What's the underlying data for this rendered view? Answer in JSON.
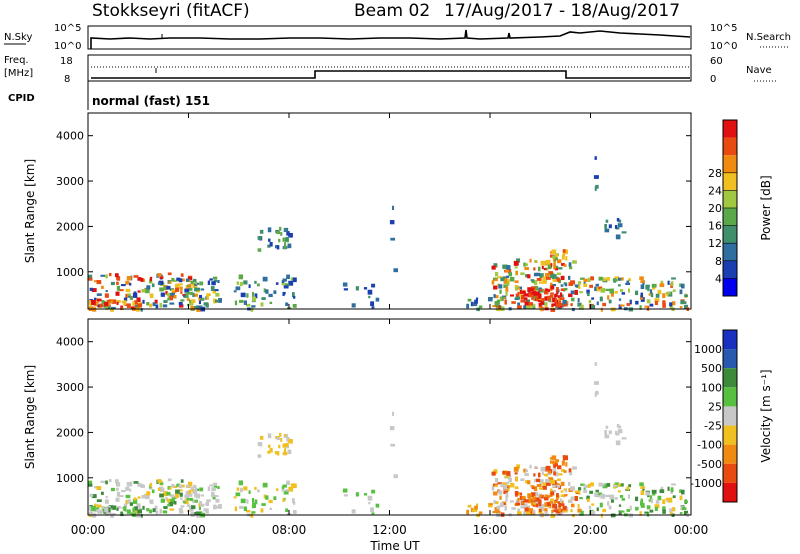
{
  "header": {
    "station": "Stokkseyri (fitACF)",
    "beam_label": "Beam 02",
    "date_range": "17/Aug/2017 - 18/Aug/2017"
  },
  "top_panels": {
    "nsky_label": "N.Sky",
    "nsearch_label": "N.Search",
    "nsky_ticks": [
      "10^5",
      "10^0"
    ],
    "nsearch_ticks": [
      "10^5",
      "10^0"
    ],
    "freq_label_top": "Freq.",
    "freq_label_bottom": "[MHz]",
    "freq_ticks": [
      "18",
      "8"
    ],
    "nave_label": "Nave",
    "nave_ticks": [
      "60",
      "0"
    ],
    "cpid_label": "CPID",
    "cpid_text": "normal (fast) 151"
  },
  "chart_data": [
    {
      "type": "heatmap",
      "title": "",
      "xlabel": "",
      "ylabel": "Slant Range [km]",
      "xlim": [
        "00:00",
        "24:00"
      ],
      "ylim": [
        180,
        4500
      ],
      "yticks": [
        "1000",
        "2000",
        "3000",
        "4000"
      ],
      "colorbar": {
        "label": "Power [dB]",
        "ticks": [
          "4",
          "8",
          "12",
          "16",
          "20",
          "24",
          "28"
        ],
        "range": [
          0,
          30
        ],
        "colors": [
          "#0000ee",
          "#1a3fb0",
          "#2f6fa0",
          "#3f8f6c",
          "#5aa848",
          "#a0c840",
          "#f0c020",
          "#f08a10",
          "#e84a10",
          "#e01010"
        ]
      }
    },
    {
      "type": "heatmap",
      "title": "",
      "xlabel": "Time UT",
      "ylabel": "Slant Range [km]",
      "xlim": [
        "00:00",
        "24:00"
      ],
      "ylim": [
        180,
        4500
      ],
      "xticks": [
        "00:00",
        "04:00",
        "08:00",
        "12:00",
        "16:00",
        "20:00",
        "00:00"
      ],
      "yticks": [
        "1000",
        "2000",
        "3000",
        "4000"
      ],
      "colorbar": {
        "label": "Velocity [m s⁻¹]",
        "ticks": [
          "1000",
          "500",
          "100",
          "25",
          "-25",
          "-100",
          "-500",
          "-1000"
        ],
        "colors": [
          "#1a30c0",
          "#2858b0",
          "#3d8a3a",
          "#58c040",
          "#c8c8c8",
          "#f0c020",
          "#f08a10",
          "#e84a10",
          "#e01010"
        ]
      }
    }
  ]
}
